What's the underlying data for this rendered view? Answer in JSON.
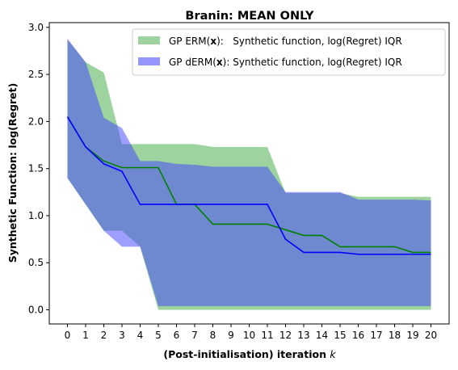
{
  "chart_data": {
    "type": "line",
    "title": "Branin: MEAN ONLY",
    "xlabel_main": "(Post-initialisation) iteration ",
    "xlabel_var": "k",
    "ylabel": "Synthetic Function: log(Regret)",
    "ylim": [
      -0.15,
      3.05
    ],
    "xlim": [
      -1,
      21
    ],
    "x": [
      0,
      1,
      2,
      3,
      4,
      5,
      6,
      7,
      8,
      9,
      10,
      11,
      12,
      13,
      14,
      15,
      16,
      17,
      18,
      19,
      20
    ],
    "xticks": [
      "0",
      "1",
      "2",
      "3",
      "4",
      "5",
      "6",
      "7",
      "8",
      "9",
      "10",
      "11",
      "12",
      "13",
      "14",
      "15",
      "16",
      "17",
      "18",
      "19",
      "20"
    ],
    "yticks": [
      "0.0",
      "0.5",
      "1.0",
      "1.5",
      "2.0",
      "2.5",
      "3.0"
    ],
    "grid": false,
    "legend_position": "top-right",
    "series": [
      {
        "name": "GP ERM(x):   Synthetic function, log(Regret) IQR",
        "legend_prefix": "GP ERM(",
        "legend_bold": "x",
        "legend_suffix": "):   Synthetic function, log(Regret) IQR",
        "fill_color": "#4caf50",
        "line_color": "#008000",
        "median": [
          2.05,
          1.73,
          1.58,
          1.51,
          1.51,
          1.51,
          1.12,
          1.12,
          0.91,
          0.91,
          0.91,
          0.91,
          0.85,
          0.79,
          0.79,
          0.67,
          0.67,
          0.67,
          0.67,
          0.61,
          0.61
        ],
        "upper": [
          2.87,
          2.63,
          2.52,
          1.76,
          1.76,
          1.76,
          1.76,
          1.76,
          1.73,
          1.73,
          1.73,
          1.73,
          1.24,
          1.24,
          1.24,
          1.24,
          1.2,
          1.2,
          1.2,
          1.2,
          1.2
        ],
        "lower": [
          1.4,
          1.12,
          0.84,
          0.84,
          0.67,
          0.0,
          0.0,
          0.0,
          0.0,
          0.0,
          0.0,
          0.0,
          0.0,
          0.0,
          0.0,
          0.0,
          0.0,
          0.0,
          0.0,
          0.0,
          0.0
        ]
      },
      {
        "name": "GP dERM(x): Synthetic function, log(Regret) IQR",
        "legend_prefix": "GP dERM(",
        "legend_bold": "x",
        "legend_suffix": "): Synthetic function, log(Regret) IQR",
        "fill_color": "#4040ff",
        "line_color": "#0000ff",
        "median": [
          2.05,
          1.73,
          1.55,
          1.47,
          1.12,
          1.12,
          1.12,
          1.12,
          1.12,
          1.12,
          1.12,
          1.12,
          0.75,
          0.61,
          0.61,
          0.61,
          0.59,
          0.59,
          0.59,
          0.59,
          0.59
        ],
        "upper": [
          2.88,
          2.63,
          2.04,
          1.93,
          1.58,
          1.58,
          1.55,
          1.54,
          1.52,
          1.52,
          1.52,
          1.52,
          1.25,
          1.25,
          1.25,
          1.25,
          1.17,
          1.17,
          1.17,
          1.17,
          1.16
        ],
        "lower": [
          1.4,
          1.12,
          0.84,
          0.67,
          0.67,
          0.04,
          0.04,
          0.04,
          0.04,
          0.04,
          0.04,
          0.04,
          0.04,
          0.04,
          0.04,
          0.04,
          0.04,
          0.04,
          0.04,
          0.04,
          0.04
        ]
      }
    ]
  }
}
